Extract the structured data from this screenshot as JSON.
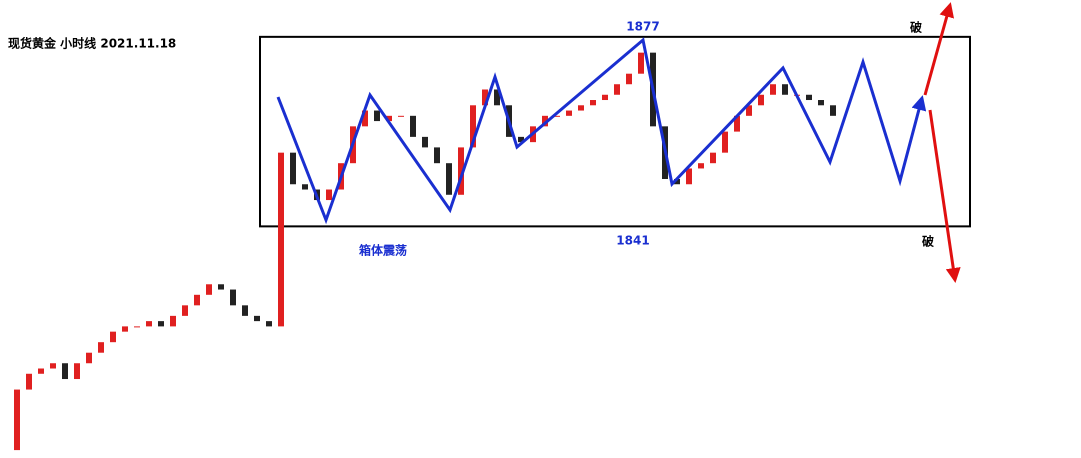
{
  "chart_data": {
    "type": "candlestick",
    "title": "现货黄金 小时线 2021.11.18",
    "box_top": 1877,
    "box_bottom": 1841,
    "box_label": "箱体震荡",
    "breakout_labels": [
      "破",
      "破"
    ],
    "up_color": "#e02020",
    "down_color": "#222222",
    "ylim": [
      1797,
      1884
    ],
    "values": [
      1798.5,
      1810,
      1813,
      1814,
      1815,
      1812,
      1815,
      1817,
      1819,
      1821,
      1822,
      1822,
      1823,
      1822,
      1824,
      1826,
      1828,
      1830,
      1829,
      1826,
      1824,
      1823,
      1822,
      1855,
      1849,
      1848,
      1846,
      1848,
      1853,
      1860,
      1863,
      1861,
      1862,
      1862,
      1858,
      1856,
      1853,
      1847,
      1856,
      1864,
      1867,
      1864,
      1858,
      1857,
      1860,
      1862,
      1862,
      1863,
      1864,
      1865,
      1866,
      1868,
      1870,
      1874,
      1860,
      1850,
      1849,
      1852,
      1853,
      1855,
      1859,
      1862,
      1864,
      1866,
      1868,
      1866,
      1866,
      1865,
      1864,
      1862
    ]
  }
}
